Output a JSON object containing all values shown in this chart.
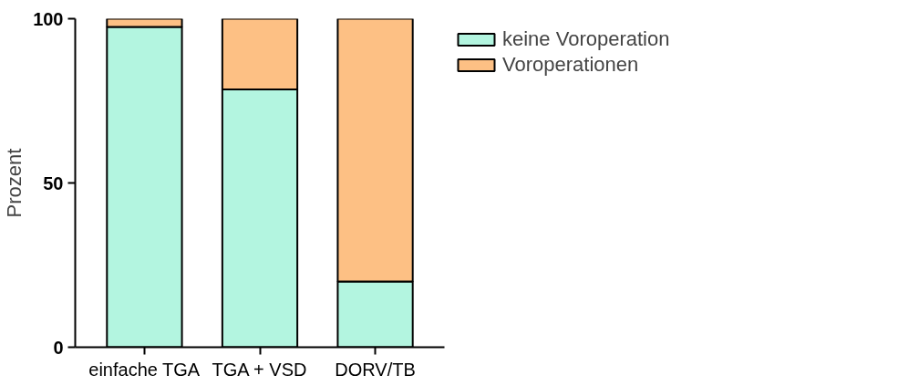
{
  "chart_data": {
    "type": "bar",
    "stacked": true,
    "ylabel": "Prozent",
    "categories": [
      "einfache TGA",
      "TGA + VSD",
      "DORV/TB"
    ],
    "series": [
      {
        "name": "keine Voroperation",
        "color": "#b3f5e0",
        "values": [
          97.5,
          78.5,
          20
        ]
      },
      {
        "name": "Voroperationen",
        "color": "#fdc084",
        "values": [
          2.5,
          21.5,
          80
        ]
      }
    ],
    "ylim": [
      0,
      100
    ],
    "yticks": [
      0,
      50,
      100
    ],
    "grid": false,
    "legend": "top right"
  }
}
